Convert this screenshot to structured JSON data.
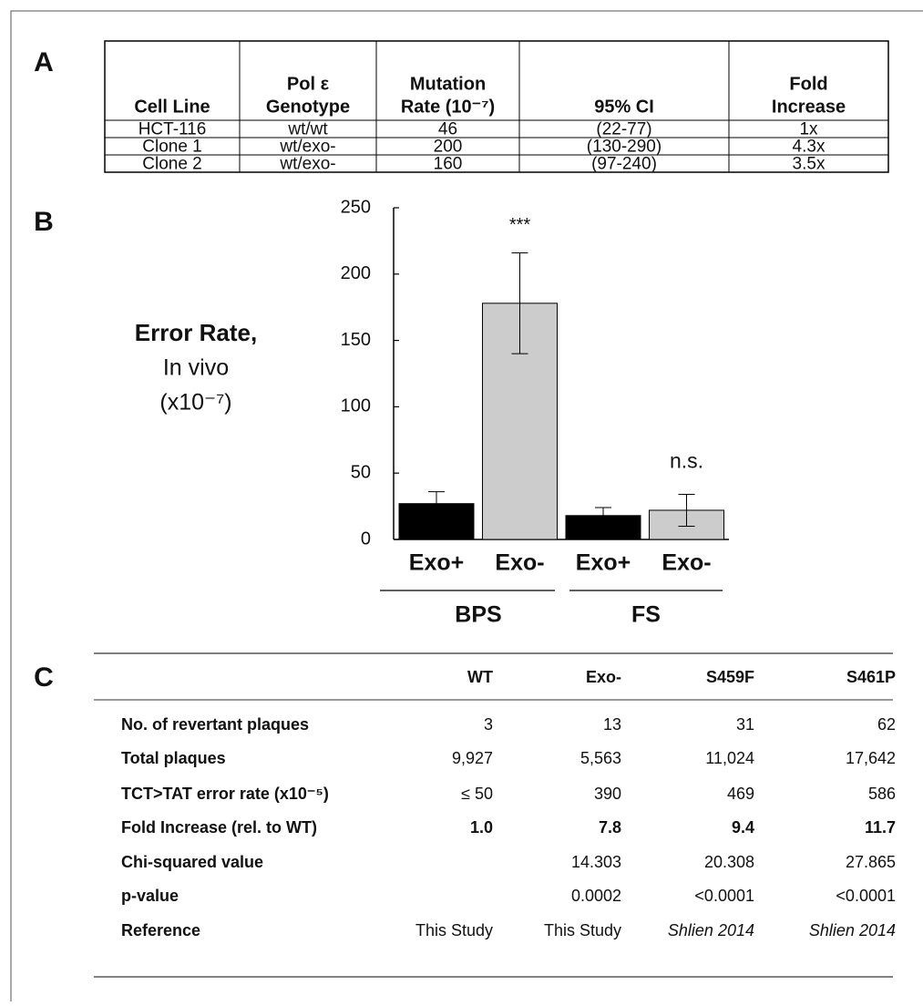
{
  "panels": {
    "a": "A",
    "b": "B",
    "c": "C"
  },
  "table_a": {
    "header": [
      [
        "Cell Line"
      ],
      [
        "Pol ε",
        "Genotype"
      ],
      [
        "Mutation",
        "Rate (10⁻⁷)"
      ],
      [
        "95% CI"
      ],
      [
        "Fold",
        "Increase"
      ]
    ],
    "rows": [
      [
        "HCT-116",
        "wt/wt",
        "46",
        "(22-77)",
        "1x"
      ],
      [
        "Clone 1",
        "wt/exo-",
        "200",
        "(130-290)",
        "4.3x"
      ],
      [
        "Clone 2",
        "wt/exo-",
        "160",
        "(97-240)",
        "3.5x"
      ]
    ]
  },
  "chart_data": {
    "type": "bar",
    "ylabel": [
      "Error Rate,",
      "In vivo",
      "(x10⁻⁷)"
    ],
    "categories": [
      "Exo+",
      "Exo-",
      "Exo+",
      "Exo-"
    ],
    "values": [
      27,
      178,
      18,
      22
    ],
    "errors": [
      9,
      38,
      6,
      12
    ],
    "colors": [
      "#000000",
      "#cccccc",
      "#000000",
      "#cccccc"
    ],
    "groups": [
      {
        "name": "BPS",
        "size": 2
      },
      {
        "name": "FS",
        "size": 2
      }
    ],
    "annotations": [
      "",
      "***",
      "",
      "n.s."
    ],
    "ylim": [
      0,
      250
    ],
    "yticks": [
      0,
      50,
      100,
      150,
      200,
      250
    ],
    "grid": false
  },
  "table_c": {
    "header": [
      "WT",
      "Exo-",
      "S459F",
      "S461P"
    ],
    "rows": [
      {
        "label": "No. of revertant plaques",
        "cells": [
          "3",
          "13",
          "31",
          "62"
        ]
      },
      {
        "label": "Total plaques",
        "cells": [
          "9,927",
          "5,563",
          "11,024",
          "17,642"
        ]
      },
      {
        "label": "TCT>TAT error rate (x10⁻⁵)",
        "cells": [
          "≤ 50",
          "390",
          "469",
          "586"
        ]
      },
      {
        "label": "Fold Increase (rel. to WT)",
        "cells": [
          "1.0",
          "7.8",
          "9.4",
          "11.7"
        ],
        "bold": true
      },
      {
        "label": "Chi-squared value",
        "cells": [
          null,
          "14.303",
          "20.308",
          "27.865"
        ]
      },
      {
        "label": "p-value",
        "cells": [
          null,
          "0.0002",
          "<0.0001",
          "<0.0001"
        ]
      },
      {
        "label": "Reference",
        "cells": [
          "This Study",
          "This Study",
          "Shlien 2014",
          "Shlien 2014"
        ],
        "italic": [
          false,
          false,
          true,
          true
        ]
      }
    ]
  }
}
